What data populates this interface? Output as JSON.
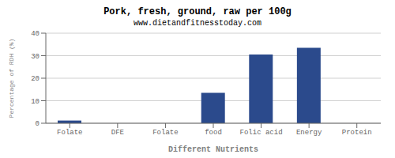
{
  "chart_data": {
    "type": "bar",
    "title": "Pork, fresh, ground, raw per 100g",
    "subtitle": "www.dietandfitnesstoday.com",
    "xlabel": "Different Nutrients",
    "ylabel": "Percentage of RDH (%)",
    "categories": [
      "Folate",
      "DFE",
      "Folate",
      "food",
      "Folic acid",
      "Energy",
      "Protein"
    ],
    "values": [
      1.2,
      0,
      0,
      13.5,
      30.5,
      33.5,
      0
    ],
    "color": "#2b4a8c",
    "ylim": [
      0,
      40
    ],
    "yticks": [
      0,
      10,
      20,
      30,
      40
    ],
    "grid": true
  }
}
